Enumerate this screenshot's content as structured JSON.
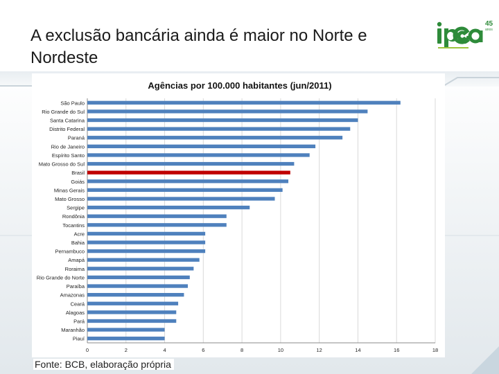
{
  "slide": {
    "title": "A exclusão bancária ainda é maior no Norte e Nordeste",
    "source": "Fonte: BCB, elaboração própria",
    "logo": {
      "wordmark": "ipea",
      "badge": "45",
      "badge_sub": "anos",
      "brand_color": "#2e8b3a",
      "accent_color": "#9bc53d"
    }
  },
  "chart_data": {
    "type": "bar",
    "orientation": "horizontal",
    "title": "Agências por 100.000 habitantes (jun/2011)",
    "xlabel": "",
    "ylabel": "",
    "xlim": [
      0,
      18
    ],
    "xticks": [
      0,
      2,
      4,
      6,
      8,
      10,
      12,
      14,
      16,
      18
    ],
    "grid": "vertical",
    "legend": "none",
    "bar_color": "#4f81bd",
    "highlight_color": "#c00000",
    "highlight_category": "Brasil",
    "categories": [
      "São Paulo",
      "Rio Grande do Sul",
      "Santa Catarina",
      "Distrito Federal",
      "Paraná",
      "Rio de Janeiro",
      "Espírito Santo",
      "Mato Grosso do Sul",
      "Brasil",
      "Goiás",
      "Minas Gerais",
      "Mato Grosso",
      "Sergipe",
      "Rondônia",
      "Tocantins",
      "Acre",
      "Bahia",
      "Pernambuco",
      "Amapá",
      "Roraima",
      "Rio Grande do Norte",
      "Paraíba",
      "Amazonas",
      "Ceará",
      "Alagoas",
      "Pará",
      "Maranhão",
      "Piauí"
    ],
    "values": [
      16.2,
      14.5,
      14.0,
      13.6,
      13.2,
      11.8,
      11.5,
      10.7,
      10.5,
      10.4,
      10.1,
      9.7,
      8.4,
      7.2,
      7.2,
      6.1,
      6.1,
      6.1,
      5.8,
      5.5,
      5.3,
      5.2,
      5.0,
      4.7,
      4.6,
      4.6,
      4.0,
      4.0
    ]
  }
}
